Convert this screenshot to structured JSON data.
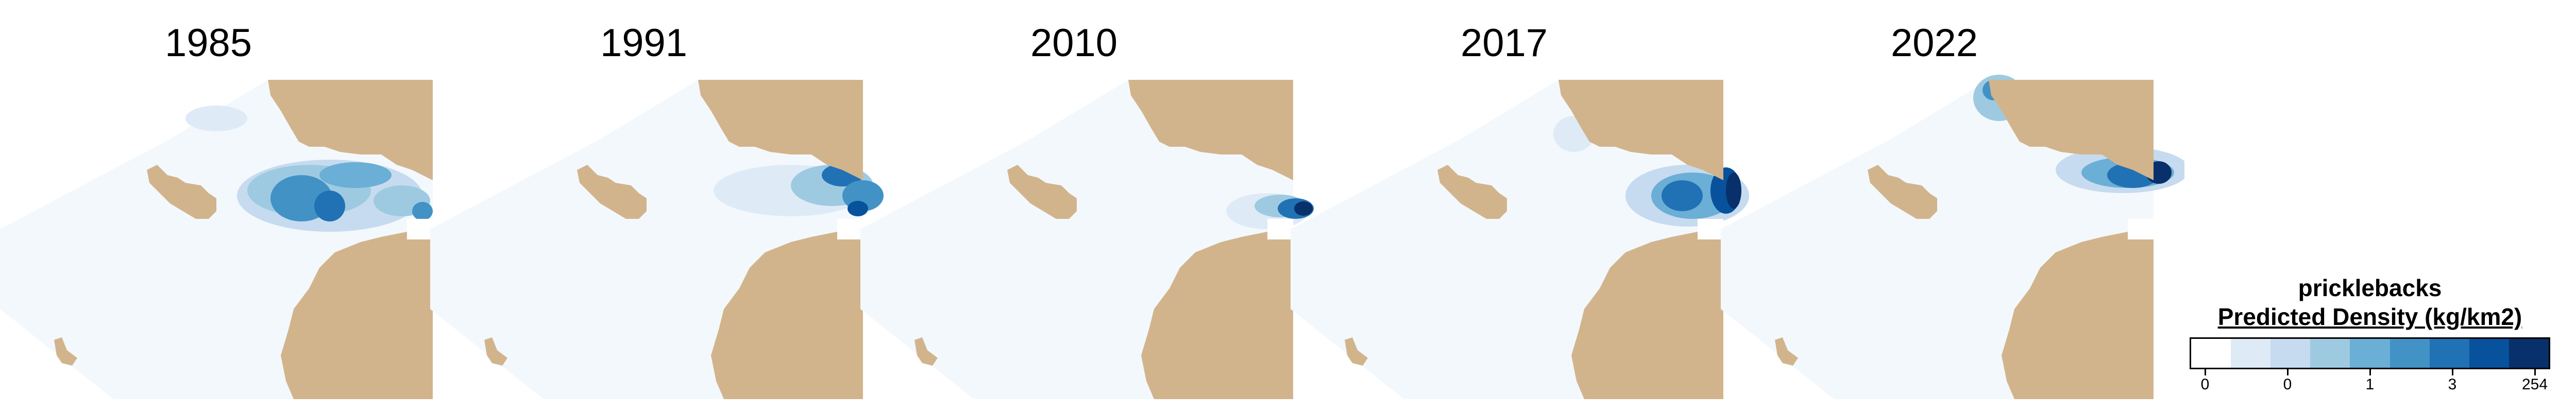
{
  "panels": [
    {
      "year": "1985"
    },
    {
      "year": "1991"
    },
    {
      "year": "2010"
    },
    {
      "year": "2017"
    },
    {
      "year": "2022"
    }
  ],
  "legend": {
    "species": "pricklebacks",
    "title": "Predicted Density (kg/km2)",
    "colors": [
      "#ffffff",
      "#deebf7",
      "#c6dbef",
      "#9ecae1",
      "#6baed6",
      "#4292c6",
      "#2171b5",
      "#08519c",
      "#08306b"
    ],
    "tick_labels": [
      "0",
      "0",
      "1",
      "3",
      "254"
    ]
  },
  "colors": {
    "land": "#d2b48c",
    "water_background": "#f3f8fd",
    "low_density": "#c6dbef",
    "high_density": "#08306b"
  }
}
